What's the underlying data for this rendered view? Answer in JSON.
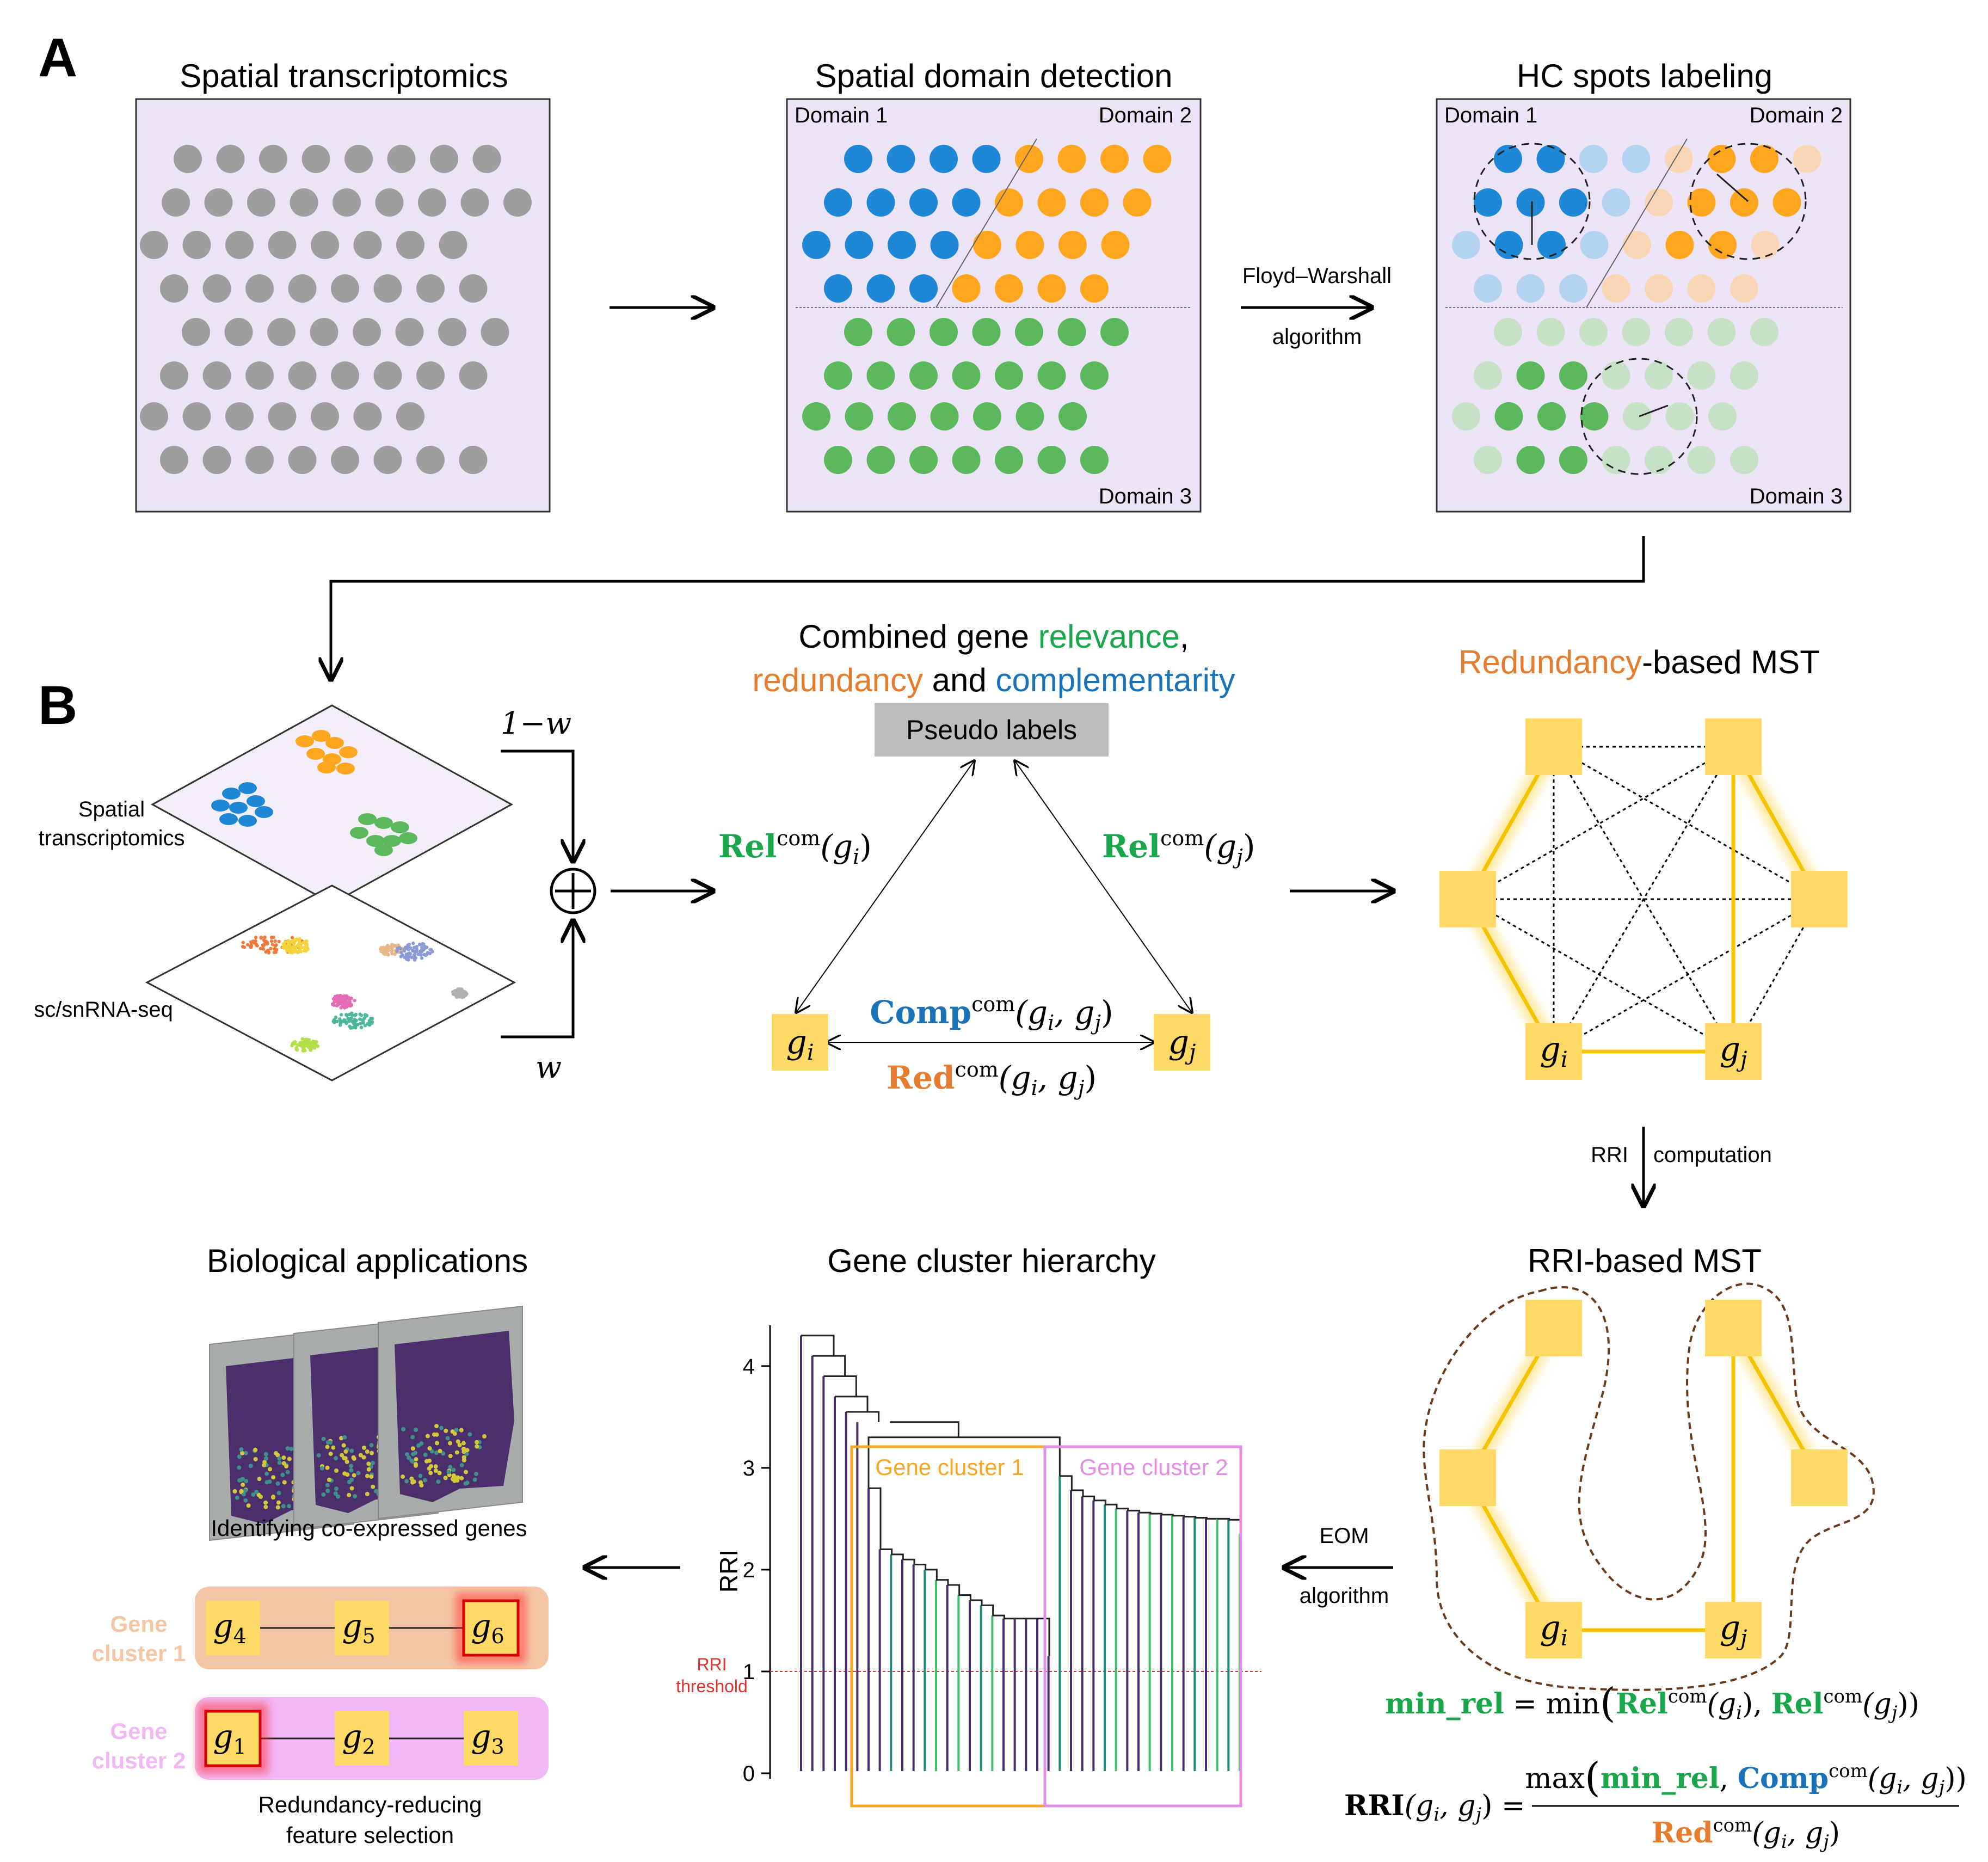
{
  "panel_labels": {
    "a": "A",
    "b": "B"
  },
  "colors": {
    "panel_bg": "#ece4f6",
    "gray_spot": "#9e9e9e",
    "blue": "#1e88d6",
    "orange": "#ffa61e",
    "green": "#5cb85c",
    "light_blue": "#b3d3f0",
    "light_orange": "#f8d6b5",
    "light_green": "#c6e1c6",
    "gene_box": "#ffd966",
    "rel_green": "#1aa64a",
    "comp_blue": "#1a73b8",
    "red_orange": "#e57c2e",
    "threshold_red": "#e03030",
    "cluster1_box": "#f5a623",
    "cluster2_box": "#e58ce8",
    "cluster1_bg": "#f5c6a5",
    "cluster2_bg": "#f2b8f5",
    "contour_brown": "#6b3a1a"
  },
  "panel_a": {
    "titles": {
      "spatial": "Spatial transcriptomics",
      "domain": "Spatial domain detection",
      "hc": "HC spots labeling"
    },
    "domain_labels": {
      "d1": "Domain 1",
      "d2": "Domain 2",
      "d3": "Domain 3"
    },
    "arrow_label_top": "Floyd–Warshall",
    "arrow_label_bottom": "algorithm"
  },
  "panel_b": {
    "layer_labels": {
      "spatial_line1": "Spatial",
      "spatial_line2": "transcriptomics",
      "sc": "sc/snRNA-seq"
    },
    "weights": {
      "one_minus_w": "1−w",
      "w": "w"
    },
    "combined_title": {
      "l1_a": "Combined gene ",
      "l1_b": "relevance",
      "l1_c": ",",
      "l2_a": "redundancy",
      "l2_b": " and ",
      "l2_c": "complementarity"
    },
    "pseudo_labels": "Pseudo labels",
    "rel_gi": {
      "bold": "Rel",
      "sup": "com",
      "arg": "(g",
      "sub": "i",
      "close": ")"
    },
    "rel_gj": {
      "bold": "Rel",
      "sup": "com",
      "arg": "(g",
      "sub": "j",
      "close": ")"
    },
    "comp": {
      "bold": "Comp",
      "sup": "com",
      "arg": "(g",
      "sub1": "i",
      "mid": ", g",
      "sub2": "j",
      "close": ")"
    },
    "red": {
      "bold": "Red",
      "sup": "com",
      "arg": "(g",
      "sub1": "i",
      "mid": ", g",
      "sub2": "j",
      "close": ")"
    },
    "gene_i": {
      "g": "g",
      "sub": "i"
    },
    "gene_j": {
      "g": "g",
      "sub": "j"
    },
    "mst_title_a": "Redundancy",
    "mst_title_b": "-based MST",
    "rri_arrow_a": "RRI",
    "rri_arrow_b": "computation",
    "rri_mst_title": "RRI-based MST",
    "eom_top": "EOM",
    "eom_bottom": "algorithm",
    "hierarchy_title": "Gene cluster hierarchy",
    "apps_title": "Biological applications",
    "coexp_caption": "Identifying co-expressed genes",
    "cluster1_label_l1": "Gene",
    "cluster1_label_l2": "cluster 1",
    "cluster2_label_l1": "Gene",
    "cluster2_label_l2": "cluster 2",
    "cluster1_genes": [
      {
        "g": "g",
        "sub": "4"
      },
      {
        "g": "g",
        "sub": "5"
      },
      {
        "g": "g",
        "sub": "6"
      }
    ],
    "cluster2_genes": [
      {
        "g": "g",
        "sub": "1"
      },
      {
        "g": "g",
        "sub": "2"
      },
      {
        "g": "g",
        "sub": "3"
      }
    ],
    "feature_caption_l1": "Redundancy-reducing",
    "feature_caption_l2": "feature selection",
    "formula_minrel": {
      "lhs": "min_rel",
      "eq": " = min",
      "open": "(",
      "rel": "Rel",
      "sup": "com",
      "arg1": "(g",
      "sub1": "i",
      "sep": "), ",
      "rel2": "Rel",
      "sup2": "com",
      "arg2": "(g",
      "sub2": "j",
      "close": "))"
    },
    "formula_rri": {
      "lhs": "RRI",
      "lhs_args_a": "(g",
      "lhs_sub1": "i",
      "lhs_mid": ", g",
      "lhs_sub2": "j",
      "lhs_close": ") =",
      "num_max": "max",
      "num_open": "(",
      "num_minrel": "min_rel",
      "num_comma": ", ",
      "num_comp": "Comp",
      "num_sup": "com",
      "num_args": "(g",
      "num_sub1": "i",
      "num_mid": ", g",
      "num_sub2": "j",
      "num_close": "))",
      "den_red": "Red",
      "den_sup": "com",
      "den_args": "(g",
      "den_sub1": "i",
      "den_mid": ", g",
      "den_sub2": "j",
      "den_close": ")"
    }
  },
  "chart_data": {
    "type": "dendrogram",
    "ylabel": "RRI",
    "yticks": [
      0,
      1,
      2,
      3,
      4
    ],
    "ylim": [
      0,
      4.4
    ],
    "threshold": 1,
    "threshold_label_l1": "RRI",
    "threshold_label_l2": "threshold",
    "clusters": [
      {
        "name": "Gene cluster 1"
      },
      {
        "name": "Gene cluster 2"
      }
    ]
  }
}
